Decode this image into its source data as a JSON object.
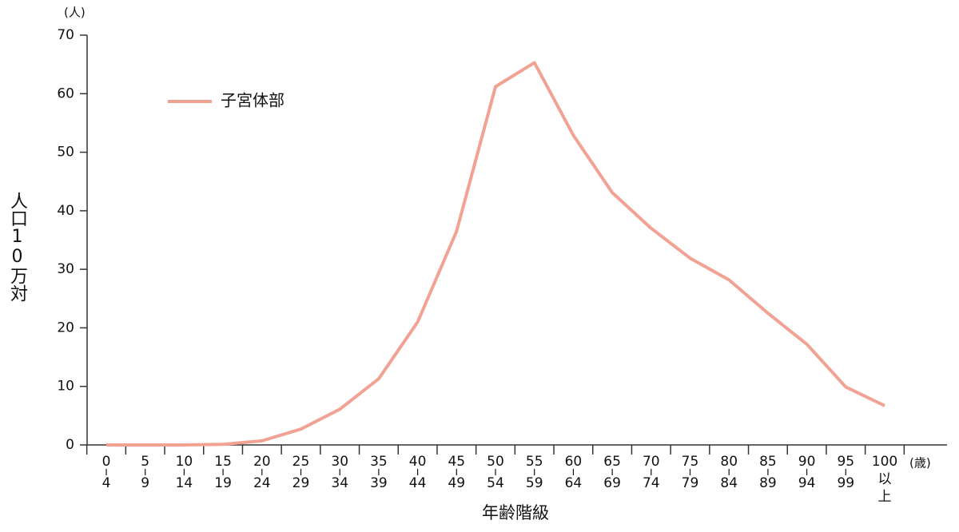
{
  "chart_data": {
    "type": "line",
    "y_unit": "(人)",
    "x_unit": "(歳)",
    "y_label": "人口10万対",
    "x_label": "年齢階級",
    "categories": [
      [
        "0",
        "4"
      ],
      [
        "5",
        "9"
      ],
      [
        "10",
        "14"
      ],
      [
        "15",
        "19"
      ],
      [
        "20",
        "24"
      ],
      [
        "25",
        "29"
      ],
      [
        "30",
        "34"
      ],
      [
        "35",
        "39"
      ],
      [
        "40",
        "44"
      ],
      [
        "45",
        "49"
      ],
      [
        "50",
        "54"
      ],
      [
        "55",
        "59"
      ],
      [
        "60",
        "64"
      ],
      [
        "65",
        "69"
      ],
      [
        "70",
        "74"
      ],
      [
        "75",
        "79"
      ],
      [
        "80",
        "84"
      ],
      [
        "85",
        "89"
      ],
      [
        "90",
        "94"
      ],
      [
        "95",
        "99"
      ],
      [
        "100",
        "以",
        "上"
      ]
    ],
    "series": [
      {
        "name": "子宮体部",
        "color": "#f2a293",
        "values": [
          0,
          0,
          0,
          0.1,
          0.7,
          2.7,
          6.1,
          11.3,
          21,
          36.5,
          61.2,
          65.3,
          52.9,
          43.1,
          37,
          31.9,
          28.2,
          22.5,
          17.2,
          9.9,
          6.7
        ]
      }
    ],
    "ylim": [
      0,
      70
    ],
    "yticks": [
      0,
      10,
      20,
      30,
      40,
      50,
      60,
      70
    ],
    "legend": "upper-left"
  }
}
